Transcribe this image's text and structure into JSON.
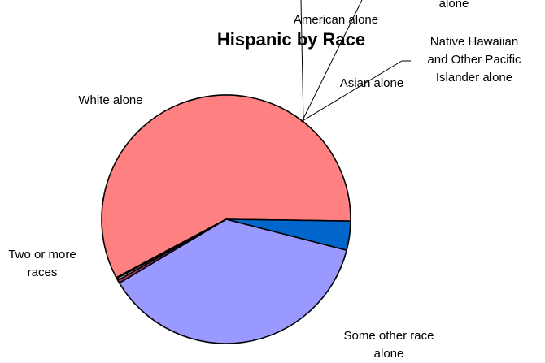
{
  "chart_data": {
    "type": "pie",
    "title": "Hispanic by Race",
    "slices": [
      {
        "label": "Some other race alone",
        "label_lines": [
          "Some other race",
          "alone"
        ],
        "value": 58.0,
        "color": "#ff8080"
      },
      {
        "label": "Two or more races",
        "label_lines": [
          "Two or more",
          "races"
        ],
        "value": 3.8,
        "color": "#0066cc"
      },
      {
        "label": "White alone",
        "label_lines": [
          "White alone"
        ],
        "value": 37.4,
        "color": "#9999ff"
      },
      {
        "label": "Black or African American alone",
        "label_lines": [
          "alone"
        ],
        "value": 0.4,
        "color": "#993366"
      },
      {
        "label": "American Indian and Alaska Native alone",
        "label_lines": [
          "American alone"
        ],
        "value": 0.25,
        "color": "#ffffcc"
      },
      {
        "label": "Asian alone",
        "label_lines": [
          "Asian alone"
        ],
        "value": 0.1,
        "color": "#ccffff"
      },
      {
        "label": "Native Hawaiian and Other Pacific Islander alone",
        "label_lines": [
          "Native Hawaiian",
          "and Other Pacific",
          "Islander alone"
        ],
        "value": 0.05,
        "color": "#660066"
      }
    ],
    "legend": "none"
  }
}
